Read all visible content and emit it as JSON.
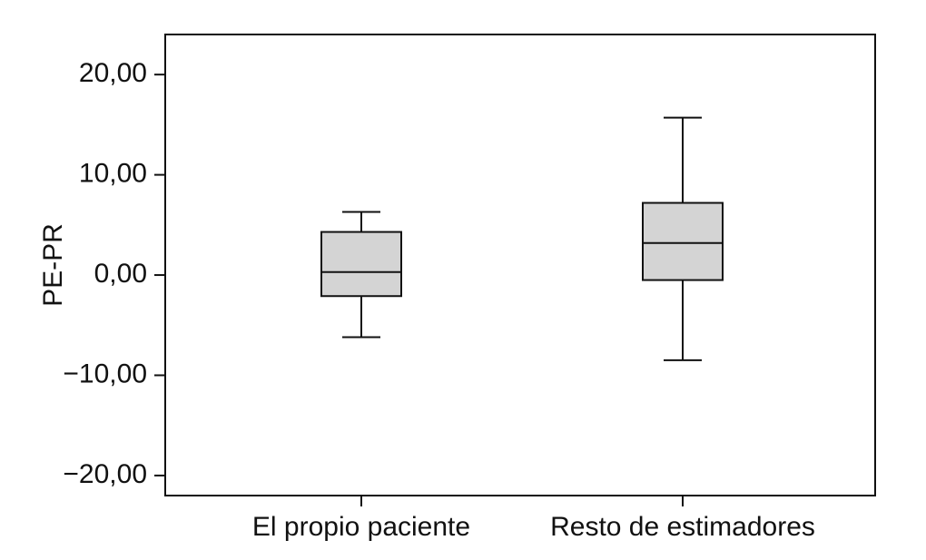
{
  "chart_data": {
    "type": "boxplot",
    "ylabel": "PE-PR",
    "xlabel": "",
    "ylim": [
      -22,
      24
    ],
    "yticks": [
      20,
      10,
      0,
      -10,
      -20
    ],
    "ytick_labels": [
      "20,00",
      "10,00",
      "0,00",
      "−10,00",
      "−20,00"
    ],
    "grid": false,
    "categories": [
      "El propio paciente",
      "Resto de estimadores"
    ],
    "boxes": [
      {
        "category": "El propio paciente",
        "whisker_low": -6.2,
        "q1": -2.1,
        "median": 0.3,
        "q3": 4.3,
        "whisker_high": 6.3
      },
      {
        "category": "Resto de estimadores",
        "whisker_low": -8.5,
        "q1": -0.5,
        "median": 3.2,
        "q3": 7.2,
        "whisker_high": 15.7
      }
    ],
    "colors": {
      "box_fill": "#d4d4d4",
      "stroke": "#111111",
      "background": "#ffffff"
    }
  }
}
